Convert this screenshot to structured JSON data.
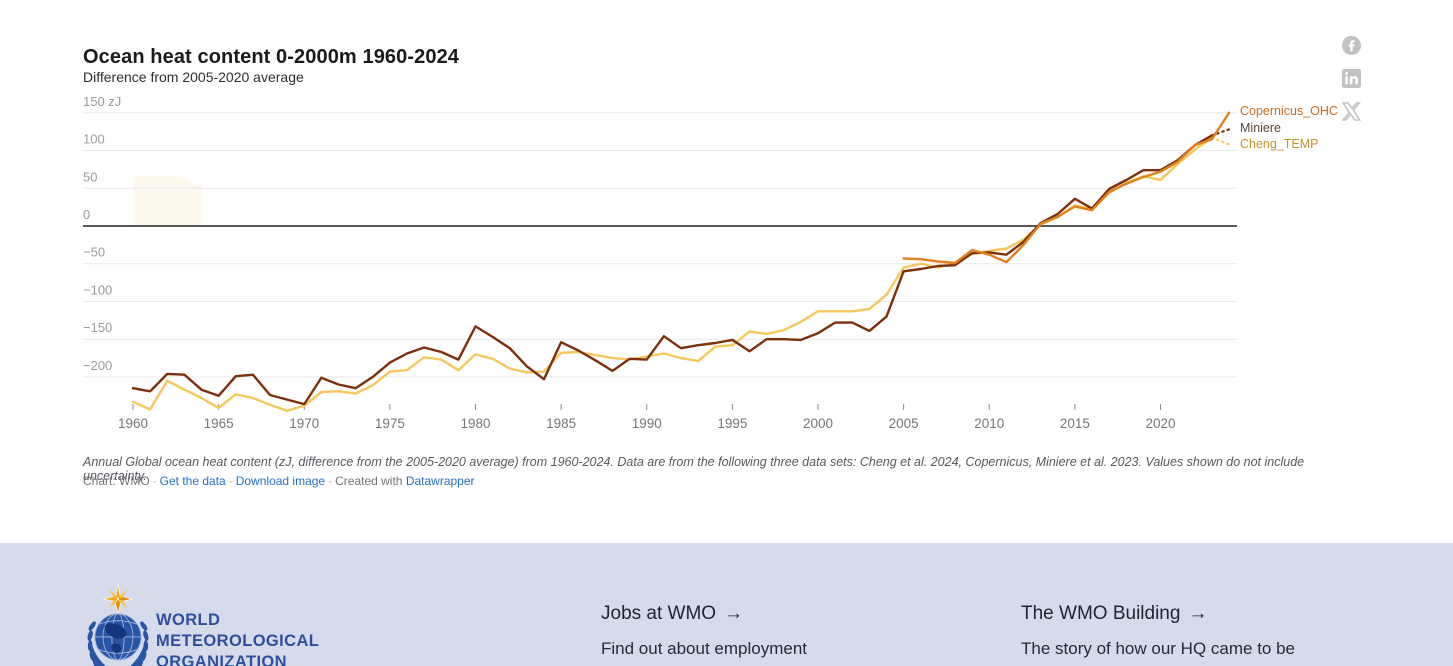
{
  "header": {
    "title": "Ocean heat content 0-2000m 1960-2024",
    "subtitle": "Difference from 2005-2020 average"
  },
  "social": {
    "icons": [
      "facebook",
      "linkedin",
      "x-twitter"
    ]
  },
  "chart_data": {
    "type": "line",
    "title": "Ocean heat content 0-2000m 1960-2024",
    "subtitle": "Difference from 2005-2020 average",
    "unit": "zJ",
    "grid": true,
    "legend_position": "right-end-of-lines",
    "y_axis": {
      "tick_values": [
        150,
        100,
        50,
        0,
        -50,
        -100,
        -150,
        -200
      ],
      "tick_labels": [
        "150 zJ",
        "100",
        "50",
        "0",
        "−50",
        "−100",
        "−150",
        "−200"
      ],
      "range": [
        -252,
        158
      ]
    },
    "x_axis": {
      "tick_years": [
        1960,
        1965,
        1970,
        1975,
        1980,
        1985,
        1990,
        1995,
        2000,
        2005,
        2010,
        2015,
        2020
      ],
      "tick_labels": [
        "1960",
        "1965",
        "1970",
        "1975",
        "1980",
        "1985",
        "1990",
        "1995",
        "2000",
        "2005",
        "2010",
        "2015",
        "2020"
      ],
      "range": [
        1960,
        2024
      ]
    },
    "highlight_area": {
      "outline_points_year_value": [
        [
          1960,
          0
        ],
        [
          1960,
          66
        ],
        [
          1962.7,
          66
        ],
        [
          1964,
          53
        ],
        [
          1964,
          0
        ]
      ],
      "fill": "#fbf4e0"
    },
    "series": [
      {
        "name": "Copernicus_OHC",
        "color": "#e2801b",
        "label_color": "#c76b1d",
        "start_year": 2005,
        "dashed_tail": false,
        "values": [
          -43,
          -44,
          -47,
          -49,
          -32,
          -38,
          -48,
          -25,
          3,
          12,
          26,
          21,
          45,
          56,
          65,
          72,
          85,
          107,
          115,
          150
        ]
      },
      {
        "name": "Miniere",
        "color": "#7d2f0c",
        "label_color": "#5c4632",
        "start_year": 1960,
        "dashed_tail": true,
        "values": [
          -215,
          -219,
          -196,
          -197,
          -217,
          -225,
          -199,
          -197,
          -224,
          -230,
          -236,
          -201,
          -210,
          -215,
          -200,
          -181,
          -169,
          -161,
          -167,
          -177,
          -133,
          -147,
          -162,
          -186,
          -203,
          -154,
          -165,
          -178,
          -192,
          -176,
          -177,
          -146,
          -162,
          -158,
          -155,
          -151,
          -166,
          -150,
          -150,
          -151,
          -142,
          -128,
          -128,
          -139,
          -120,
          -60,
          -57,
          -53,
          -52,
          -36,
          -35,
          -38,
          -21,
          4,
          16,
          36,
          23,
          49,
          61,
          74,
          74,
          87,
          107,
          120,
          128
        ]
      },
      {
        "name": "Cheng_TEMP",
        "color": "#f6c75d",
        "label_color": "#c1922b",
        "start_year": 1960,
        "dashed_tail": true,
        "values": [
          -233,
          -243,
          -205,
          -217,
          -228,
          -241,
          -223,
          -228,
          -237,
          -245,
          -238,
          -220,
          -219,
          -222,
          -211,
          -193,
          -191,
          -174,
          -177,
          -191,
          -170,
          -176,
          -189,
          -194,
          -193,
          -168,
          -167,
          -171,
          -175,
          -177,
          -173,
          -169,
          -175,
          -179,
          -160,
          -158,
          -140,
          -143,
          -138,
          -127,
          -113,
          -113,
          -113,
          -110,
          -91,
          -55,
          -50,
          -55,
          -49,
          -37,
          -33,
          -30,
          -18,
          2,
          12,
          27,
          22,
          44,
          57,
          66,
          61,
          82,
          101,
          117,
          108
        ]
      }
    ]
  },
  "caption": {
    "description": "Annual Global ocean heat content (zJ, difference from the 2005-2020 average) from 1960-2024. Data are from the following three data sets: Cheng et al. 2024, Copernicus, Miniere et al. 2023. Values shown do not include uncertainty.",
    "byline": {
      "chart_credit": "Chart: WMO",
      "get_data": "Get the data",
      "download_image": "Download image",
      "created_with": "Created with",
      "tool": "Datawrapper",
      "separator": "·"
    }
  },
  "footer": {
    "org_name_line1": "WORLD",
    "org_name_line2": "METEOROLOGICAL",
    "org_name_line3": "ORGANIZATION",
    "arrow": "→",
    "links": [
      {
        "title": "Jobs at WMO",
        "subtitle": "Find out about employment"
      },
      {
        "title": "The WMO Building",
        "subtitle": "The story of how our HQ came to be"
      }
    ]
  }
}
